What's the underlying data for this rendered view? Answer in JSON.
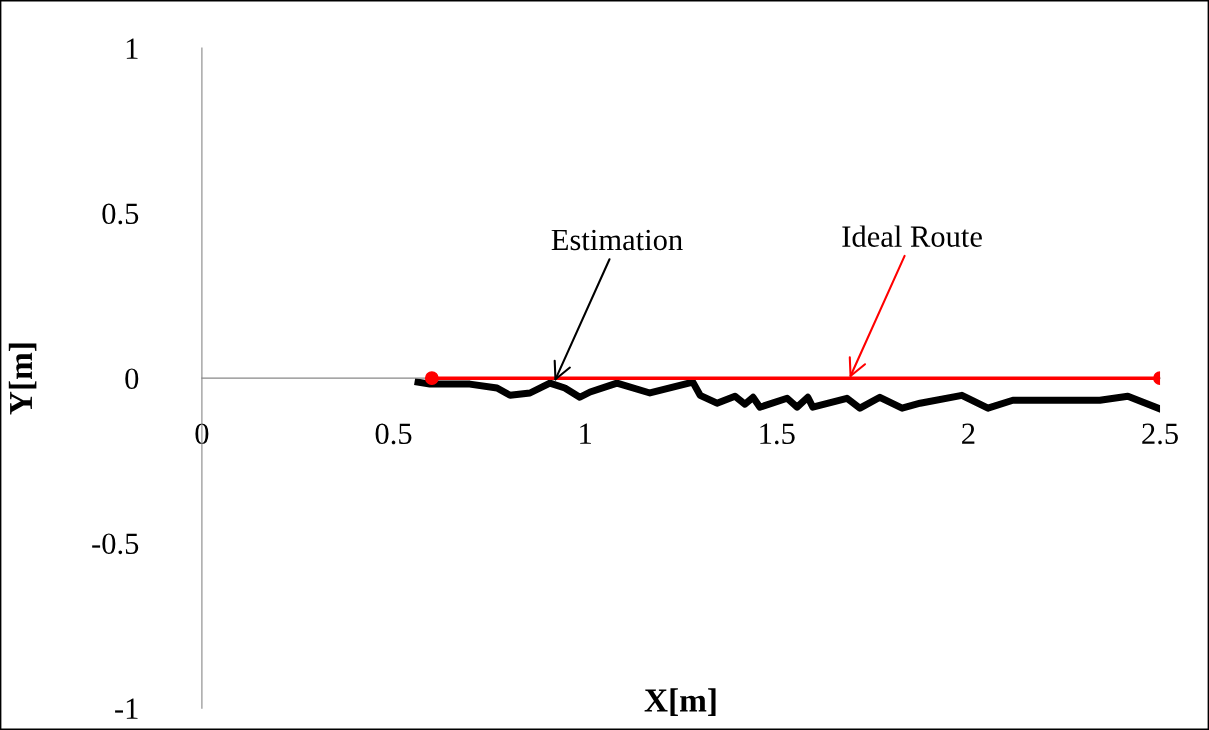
{
  "chart_data": {
    "type": "line",
    "xlabel": "X[m]",
    "ylabel": "Y[m]",
    "xlim": [
      0,
      2.5
    ],
    "ylim": [
      -1,
      1
    ],
    "xticks": [
      0,
      0.5,
      1,
      1.5,
      2,
      2.5
    ],
    "yticks": [
      -1,
      -0.5,
      0,
      0.5,
      1
    ],
    "grid": false,
    "legend": false,
    "series": [
      {
        "color": "#000000",
        "marker": "none",
        "x": [
          0.564,
          0.595,
          0.699,
          0.77,
          0.804,
          0.856,
          0.908,
          0.947,
          0.986,
          1.013,
          1.083,
          1.169,
          1.281,
          1.3,
          1.344,
          1.391,
          1.417,
          1.438,
          1.456,
          1.527,
          1.553,
          1.581,
          1.594,
          1.683,
          1.717,
          1.769,
          1.827,
          1.874,
          1.983,
          2.051,
          2.116,
          2.343,
          2.416,
          2.495
        ],
        "values": [
          -0.012,
          -0.018,
          -0.018,
          -0.03,
          -0.052,
          -0.045,
          -0.015,
          -0.03,
          -0.058,
          -0.042,
          -0.015,
          -0.045,
          -0.012,
          -0.052,
          -0.076,
          -0.055,
          -0.079,
          -0.058,
          -0.088,
          -0.061,
          -0.088,
          -0.058,
          -0.088,
          -0.061,
          -0.091,
          -0.058,
          -0.091,
          -0.076,
          -0.052,
          -0.091,
          -0.067,
          -0.067,
          -0.055,
          -0.091
        ]
      },
      {
        "color": "#ff0000",
        "marker": "circle",
        "x": [
          2.5,
          0.6
        ],
        "values": [
          0,
          0
        ]
      }
    ],
    "annotations": [
      {
        "text": "Estimation",
        "x": 0.92,
        "y": -0.01
      },
      {
        "text": "Ideal Route",
        "x": 1.69,
        "y": 0
      }
    ]
  }
}
